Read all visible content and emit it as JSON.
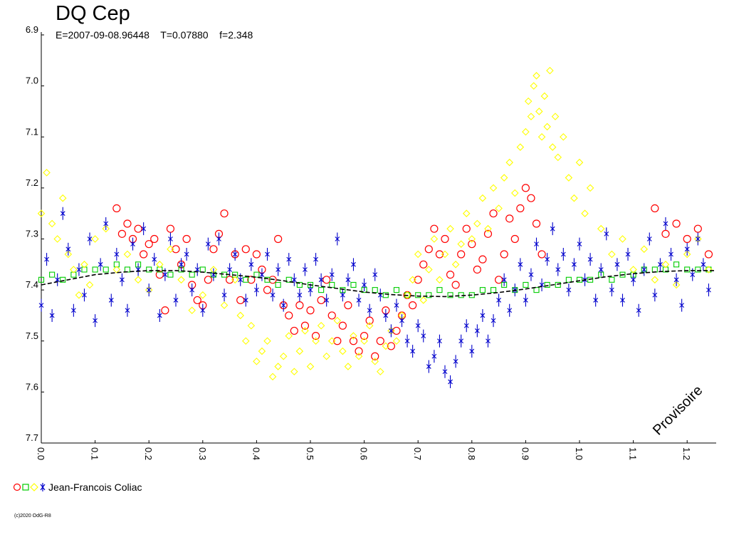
{
  "chart_data": {
    "type": "scatter",
    "title": "DQ Cep",
    "subtitle": "E=2007-09-08.96448    T=0.07880    f=2.348",
    "xlabel": "",
    "ylabel": "",
    "xlim": [
      0.0,
      1.25
    ],
    "ylim": [
      6.9,
      7.7
    ],
    "y_inverted": true,
    "x_ticks": [
      "0.0",
      "0.1",
      "0.2",
      "0.3",
      "0.4",
      "0.5",
      "0.6",
      "0.7",
      "0.8",
      "0.9",
      "1.0",
      "1.1",
      "1.2"
    ],
    "y_ticks": [
      "6.9",
      "7.0",
      "7.1",
      "7.2",
      "7.3",
      "7.4",
      "7.5",
      "7.6",
      "7.7"
    ],
    "grid": false,
    "legend_position": "bottom-left",
    "watermark": "Provisoire",
    "series": [
      {
        "name": "Jean-Francois Coliac",
        "color": "#ff0000",
        "marker": "circle",
        "x": [
          0.14,
          0.15,
          0.16,
          0.17,
          0.18,
          0.19,
          0.2,
          0.21,
          0.22,
          0.23,
          0.24,
          0.25,
          0.26,
          0.27,
          0.28,
          0.29,
          0.3,
          0.31,
          0.32,
          0.33,
          0.34,
          0.35,
          0.36,
          0.37,
          0.38,
          0.39,
          0.4,
          0.41,
          0.42,
          0.43,
          0.44,
          0.45,
          0.46,
          0.47,
          0.48,
          0.49,
          0.5,
          0.51,
          0.52,
          0.53,
          0.54,
          0.55,
          0.56,
          0.57,
          0.58,
          0.59,
          0.6,
          0.61,
          0.62,
          0.63,
          0.64,
          0.65,
          0.66,
          0.67,
          0.68,
          0.69,
          0.7,
          0.71,
          0.72,
          0.73,
          0.74,
          0.75,
          0.76,
          0.77,
          0.78,
          0.79,
          0.8,
          0.81,
          0.82,
          0.83,
          0.84,
          0.85,
          0.86,
          0.87,
          0.88,
          0.89,
          0.9,
          0.91,
          0.92,
          0.93,
          1.14,
          1.16,
          1.18,
          1.2,
          1.22,
          1.24
        ],
        "y": [
          7.24,
          7.29,
          7.27,
          7.3,
          7.28,
          7.33,
          7.31,
          7.3,
          7.37,
          7.44,
          7.28,
          7.32,
          7.35,
          7.3,
          7.39,
          7.42,
          7.43,
          7.38,
          7.32,
          7.29,
          7.25,
          7.38,
          7.33,
          7.42,
          7.32,
          7.38,
          7.33,
          7.36,
          7.4,
          7.38,
          7.3,
          7.43,
          7.45,
          7.48,
          7.43,
          7.47,
          7.44,
          7.49,
          7.42,
          7.38,
          7.45,
          7.5,
          7.47,
          7.43,
          7.5,
          7.52,
          7.49,
          7.46,
          7.53,
          7.5,
          7.44,
          7.51,
          7.48,
          7.45,
          7.41,
          7.43,
          7.38,
          7.35,
          7.32,
          7.28,
          7.33,
          7.3,
          7.37,
          7.39,
          7.33,
          7.28,
          7.31,
          7.36,
          7.34,
          7.29,
          7.25,
          7.38,
          7.33,
          7.26,
          7.3,
          7.24,
          7.2,
          7.22,
          7.27,
          7.33,
          7.24,
          7.29,
          7.27,
          7.3,
          7.28,
          7.33
        ]
      },
      {
        "name": "Jean-Francois Coliac",
        "color": "#00cc00",
        "marker": "square",
        "x": [
          0.0,
          0.02,
          0.04,
          0.06,
          0.08,
          0.1,
          0.12,
          0.14,
          0.16,
          0.18,
          0.2,
          0.22,
          0.24,
          0.26,
          0.28,
          0.3,
          0.32,
          0.34,
          0.36,
          0.38,
          0.4,
          0.42,
          0.44,
          0.46,
          0.48,
          0.5,
          0.52,
          0.54,
          0.56,
          0.58,
          0.6,
          0.62,
          0.64,
          0.66,
          0.68,
          0.7,
          0.72,
          0.74,
          0.76,
          0.78,
          0.8,
          0.82,
          0.84,
          0.86,
          0.88,
          0.9,
          0.92,
          0.94,
          0.96,
          0.98,
          1.0,
          1.02,
          1.04,
          1.06,
          1.08,
          1.1,
          1.12,
          1.14,
          1.16,
          1.18,
          1.2,
          1.22,
          1.24
        ],
        "y": [
          7.38,
          7.37,
          7.38,
          7.37,
          7.36,
          7.36,
          7.36,
          7.35,
          7.36,
          7.35,
          7.36,
          7.36,
          7.37,
          7.36,
          7.37,
          7.36,
          7.37,
          7.37,
          7.37,
          7.38,
          7.37,
          7.38,
          7.39,
          7.38,
          7.39,
          7.39,
          7.4,
          7.39,
          7.4,
          7.39,
          7.4,
          7.4,
          7.41,
          7.4,
          7.41,
          7.41,
          7.41,
          7.4,
          7.41,
          7.41,
          7.41,
          7.4,
          7.4,
          7.39,
          7.4,
          7.39,
          7.4,
          7.39,
          7.39,
          7.38,
          7.38,
          7.38,
          7.37,
          7.38,
          7.37,
          7.37,
          7.36,
          7.36,
          7.36,
          7.35,
          7.36,
          7.36,
          7.36
        ]
      },
      {
        "name": "Jean-Francois Coliac",
        "color": "#ffff00",
        "marker": "diamond",
        "x": [
          0.0,
          0.01,
          0.02,
          0.03,
          0.04,
          0.05,
          0.06,
          0.07,
          0.08,
          0.09,
          0.1,
          0.12,
          0.14,
          0.16,
          0.18,
          0.2,
          0.22,
          0.24,
          0.26,
          0.28,
          0.3,
          0.32,
          0.34,
          0.36,
          0.37,
          0.38,
          0.39,
          0.4,
          0.41,
          0.42,
          0.43,
          0.44,
          0.45,
          0.46,
          0.47,
          0.48,
          0.49,
          0.5,
          0.51,
          0.52,
          0.53,
          0.54,
          0.55,
          0.56,
          0.57,
          0.58,
          0.59,
          0.6,
          0.61,
          0.62,
          0.63,
          0.64,
          0.65,
          0.66,
          0.67,
          0.68,
          0.69,
          0.7,
          0.71,
          0.72,
          0.73,
          0.74,
          0.75,
          0.76,
          0.77,
          0.78,
          0.79,
          0.8,
          0.81,
          0.82,
          0.83,
          0.84,
          0.85,
          0.86,
          0.87,
          0.88,
          0.89,
          0.9,
          0.905,
          0.91,
          0.915,
          0.92,
          0.925,
          0.93,
          0.935,
          0.94,
          0.945,
          0.95,
          0.955,
          0.96,
          0.97,
          0.98,
          0.99,
          1.0,
          1.01,
          1.02,
          1.04,
          1.06,
          1.08,
          1.1,
          1.12,
          1.14,
          1.16,
          1.18,
          1.2,
          1.22,
          1.24
        ],
        "y": [
          7.25,
          7.17,
          7.27,
          7.3,
          7.22,
          7.33,
          7.36,
          7.41,
          7.35,
          7.39,
          7.3,
          7.28,
          7.36,
          7.33,
          7.38,
          7.4,
          7.35,
          7.32,
          7.38,
          7.44,
          7.41,
          7.36,
          7.43,
          7.38,
          7.45,
          7.5,
          7.47,
          7.54,
          7.52,
          7.5,
          7.57,
          7.55,
          7.53,
          7.49,
          7.56,
          7.52,
          7.48,
          7.55,
          7.5,
          7.47,
          7.53,
          7.5,
          7.46,
          7.52,
          7.55,
          7.49,
          7.53,
          7.5,
          7.47,
          7.54,
          7.56,
          7.51,
          7.48,
          7.5,
          7.45,
          7.41,
          7.38,
          7.33,
          7.42,
          7.36,
          7.3,
          7.38,
          7.33,
          7.28,
          7.35,
          7.31,
          7.25,
          7.3,
          7.27,
          7.22,
          7.28,
          7.2,
          7.24,
          7.18,
          7.15,
          7.21,
          7.12,
          7.09,
          7.03,
          7.06,
          7.0,
          6.98,
          7.05,
          7.1,
          7.02,
          7.08,
          6.97,
          7.12,
          7.06,
          7.14,
          7.1,
          7.18,
          7.22,
          7.15,
          7.25,
          7.2,
          7.28,
          7.33,
          7.3,
          7.36,
          7.32,
          7.38,
          7.35,
          7.39,
          7.33,
          7.3,
          7.36
        ]
      },
      {
        "name": "Jean-Francois Coliac",
        "color": "#0000cc",
        "marker": "cross-errorbar",
        "x": [
          0.0,
          0.01,
          0.02,
          0.03,
          0.04,
          0.05,
          0.06,
          0.07,
          0.08,
          0.09,
          0.1,
          0.11,
          0.12,
          0.13,
          0.14,
          0.15,
          0.16,
          0.17,
          0.18,
          0.19,
          0.2,
          0.21,
          0.22,
          0.23,
          0.24,
          0.25,
          0.26,
          0.27,
          0.28,
          0.29,
          0.3,
          0.31,
          0.32,
          0.33,
          0.34,
          0.35,
          0.36,
          0.37,
          0.38,
          0.39,
          0.4,
          0.41,
          0.42,
          0.43,
          0.44,
          0.45,
          0.46,
          0.47,
          0.48,
          0.49,
          0.5,
          0.51,
          0.52,
          0.53,
          0.54,
          0.55,
          0.56,
          0.57,
          0.58,
          0.59,
          0.6,
          0.61,
          0.62,
          0.63,
          0.64,
          0.65,
          0.66,
          0.67,
          0.68,
          0.69,
          0.7,
          0.71,
          0.72,
          0.73,
          0.74,
          0.75,
          0.76,
          0.77,
          0.78,
          0.79,
          0.8,
          0.81,
          0.82,
          0.83,
          0.84,
          0.85,
          0.86,
          0.87,
          0.88,
          0.89,
          0.9,
          0.91,
          0.92,
          0.93,
          0.94,
          0.95,
          0.96,
          0.97,
          0.98,
          0.99,
          1.0,
          1.01,
          1.02,
          1.03,
          1.04,
          1.05,
          1.06,
          1.07,
          1.08,
          1.09,
          1.1,
          1.11,
          1.12,
          1.13,
          1.14,
          1.15,
          1.16,
          1.17,
          1.18,
          1.19,
          1.2,
          1.21,
          1.22,
          1.23,
          1.24
        ],
        "y": [
          7.43,
          7.34,
          7.45,
          7.38,
          7.25,
          7.32,
          7.44,
          7.36,
          7.41,
          7.3,
          7.46,
          7.35,
          7.27,
          7.42,
          7.33,
          7.38,
          7.44,
          7.31,
          7.36,
          7.28,
          7.4,
          7.34,
          7.45,
          7.37,
          7.3,
          7.42,
          7.35,
          7.33,
          7.4,
          7.36,
          7.44,
          7.31,
          7.37,
          7.3,
          7.41,
          7.36,
          7.33,
          7.38,
          7.42,
          7.35,
          7.4,
          7.37,
          7.33,
          7.41,
          7.36,
          7.43,
          7.34,
          7.38,
          7.41,
          7.36,
          7.4,
          7.34,
          7.38,
          7.42,
          7.37,
          7.3,
          7.41,
          7.38,
          7.35,
          7.42,
          7.39,
          7.44,
          7.37,
          7.41,
          7.45,
          7.48,
          7.43,
          7.46,
          7.5,
          7.52,
          7.47,
          7.49,
          7.55,
          7.53,
          7.5,
          7.56,
          7.58,
          7.54,
          7.5,
          7.47,
          7.52,
          7.48,
          7.45,
          7.5,
          7.46,
          7.42,
          7.38,
          7.44,
          7.4,
          7.35,
          7.42,
          7.37,
          7.31,
          7.39,
          7.34,
          7.28,
          7.36,
          7.33,
          7.4,
          7.35,
          7.31,
          7.38,
          7.34,
          7.42,
          7.36,
          7.29,
          7.4,
          7.35,
          7.42,
          7.33,
          7.38,
          7.44,
          7.36,
          7.3,
          7.41,
          7.35,
          7.27,
          7.33,
          7.38,
          7.43,
          7.32,
          7.37,
          7.3,
          7.35,
          7.4
        ]
      },
      {
        "name": "",
        "color": "#000000",
        "marker": "line",
        "x": [
          0.0,
          0.05,
          0.1,
          0.15,
          0.2,
          0.25,
          0.3,
          0.35,
          0.4,
          0.45,
          0.5,
          0.55,
          0.6,
          0.65,
          0.7,
          0.75,
          0.8,
          0.85,
          0.9,
          0.95,
          1.0,
          1.05,
          1.1,
          1.15,
          1.2,
          1.25
        ],
        "y": [
          7.39,
          7.38,
          7.37,
          7.365,
          7.362,
          7.362,
          7.365,
          7.37,
          7.375,
          7.382,
          7.39,
          7.397,
          7.404,
          7.409,
          7.412,
          7.413,
          7.41,
          7.405,
          7.398,
          7.39,
          7.382,
          7.374,
          7.368,
          7.364,
          7.362,
          7.362
        ]
      }
    ]
  },
  "legend": {
    "label": "Jean-Francois Coliac"
  },
  "footer": {
    "copyright": "(c)2020 OdG-R8"
  }
}
